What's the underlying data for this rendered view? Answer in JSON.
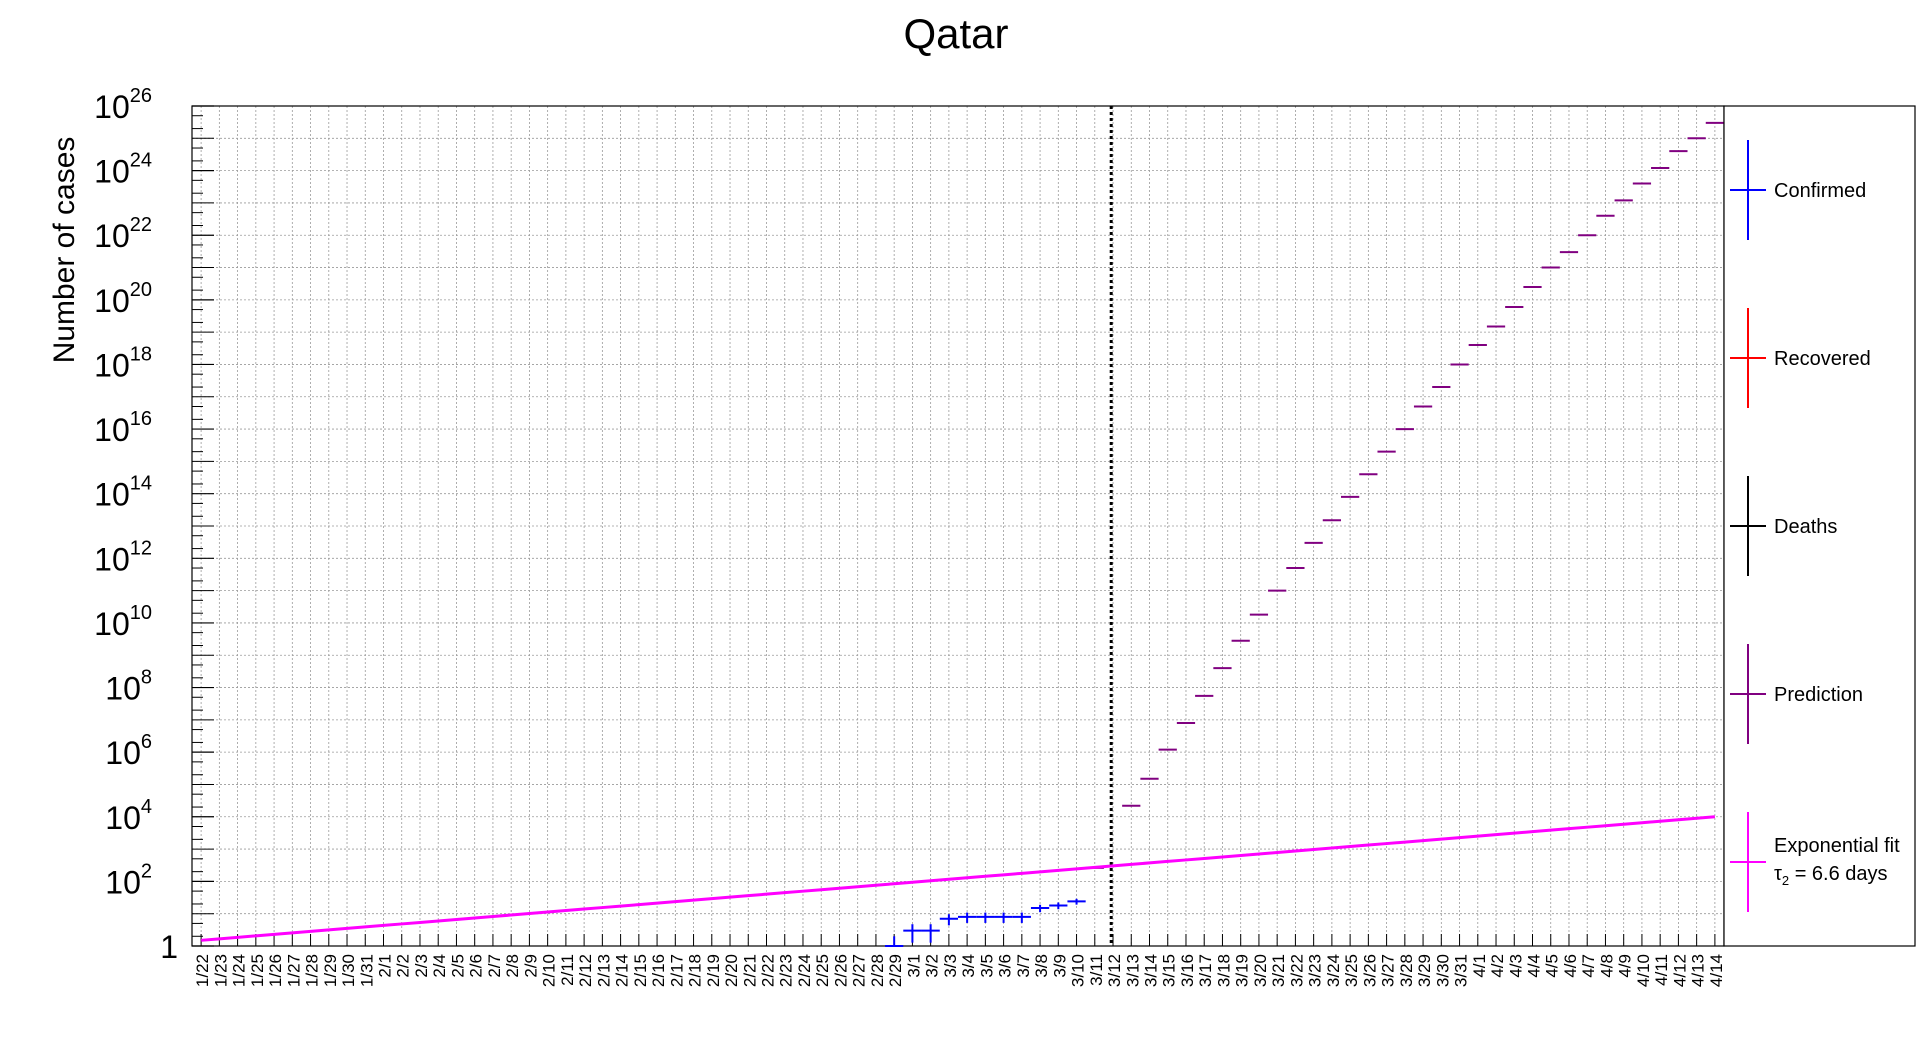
{
  "chart_data": {
    "type": "scatter",
    "title": "Qatar",
    "xlabel": "",
    "ylabel": "Number of cases",
    "y_scale": "log",
    "ylim": [
      1,
      1e+26
    ],
    "y_ticks": [
      {
        "base": "1",
        "exp": ""
      },
      {
        "base": "10",
        "exp": "2"
      },
      {
        "base": "10",
        "exp": "4"
      },
      {
        "base": "10",
        "exp": "6"
      },
      {
        "base": "10",
        "exp": "8"
      },
      {
        "base": "10",
        "exp": "10"
      },
      {
        "base": "10",
        "exp": "12"
      },
      {
        "base": "10",
        "exp": "14"
      },
      {
        "base": "10",
        "exp": "16"
      },
      {
        "base": "10",
        "exp": "18"
      },
      {
        "base": "10",
        "exp": "20"
      },
      {
        "base": "10",
        "exp": "22"
      },
      {
        "base": "10",
        "exp": "24"
      },
      {
        "base": "10",
        "exp": "26"
      }
    ],
    "grid": true,
    "legend_position": "right",
    "categories": [
      "1/22",
      "1/23",
      "1/24",
      "1/25",
      "1/26",
      "1/27",
      "1/28",
      "1/29",
      "1/30",
      "1/31",
      "2/1",
      "2/2",
      "2/3",
      "2/4",
      "2/5",
      "2/6",
      "2/7",
      "2/8",
      "2/9",
      "2/10",
      "2/11",
      "2/12",
      "2/13",
      "2/14",
      "2/15",
      "2/16",
      "2/17",
      "2/18",
      "2/19",
      "2/20",
      "2/21",
      "2/22",
      "2/23",
      "2/24",
      "2/25",
      "2/26",
      "2/27",
      "2/28",
      "2/29",
      "3/1",
      "3/2",
      "3/3",
      "3/4",
      "3/5",
      "3/6",
      "3/7",
      "3/8",
      "3/9",
      "3/10",
      "3/11",
      "3/12",
      "3/13",
      "3/14",
      "3/15",
      "3/16",
      "3/17",
      "3/18",
      "3/19",
      "3/20",
      "3/21",
      "3/22",
      "3/23",
      "3/24",
      "3/25",
      "3/26",
      "3/27",
      "3/28",
      "3/29",
      "3/30",
      "3/31",
      "4/1",
      "4/2",
      "4/3",
      "4/4",
      "4/5",
      "4/6",
      "4/7",
      "4/8",
      "4/9",
      "4/10",
      "4/11",
      "4/12",
      "4/13",
      "4/14"
    ],
    "vertical_marker": "3/12",
    "series": [
      {
        "name": "Confirmed",
        "color": "#0000ff",
        "points": [
          {
            "x": "2/29",
            "y": 1
          },
          {
            "x": "3/1",
            "y": 3
          },
          {
            "x": "3/2",
            "y": 3
          },
          {
            "x": "3/3",
            "y": 7
          },
          {
            "x": "3/4",
            "y": 8
          },
          {
            "x": "3/5",
            "y": 8
          },
          {
            "x": "3/6",
            "y": 8
          },
          {
            "x": "3/7",
            "y": 8
          },
          {
            "x": "3/8",
            "y": 15
          },
          {
            "x": "3/9",
            "y": 18
          },
          {
            "x": "3/10",
            "y": 24
          }
        ]
      },
      {
        "name": "Recovered",
        "color": "#ff0000",
        "points": []
      },
      {
        "name": "Deaths",
        "color": "#000000",
        "points": []
      },
      {
        "name": "Prediction",
        "color": "#800080",
        "points": [
          {
            "x": "3/11",
            "y": 262
          },
          {
            "x": "3/13",
            "y": 22000
          },
          {
            "x": "3/14",
            "y": 150000
          },
          {
            "x": "3/15",
            "y": 1200000
          },
          {
            "x": "3/16",
            "y": 8000000
          },
          {
            "x": "3/17",
            "y": 55000000
          },
          {
            "x": "3/18",
            "y": 400000000
          },
          {
            "x": "3/19",
            "y": 2800000000
          },
          {
            "x": "3/20",
            "y": 18000000000
          },
          {
            "x": "3/21",
            "y": 100000000000
          },
          {
            "x": "3/22",
            "y": 500000000000
          },
          {
            "x": "3/23",
            "y": 3000000000000
          },
          {
            "x": "3/24",
            "y": 15000000000000
          },
          {
            "x": "3/25",
            "y": 80000000000000
          },
          {
            "x": "3/26",
            "y": 400000000000000
          },
          {
            "x": "3/27",
            "y": 2000000000000000
          },
          {
            "x": "3/28",
            "y": 10000000000000000
          },
          {
            "x": "3/29",
            "y": 50000000000000000
          },
          {
            "x": "3/30",
            "y": 200000000000000000
          },
          {
            "x": "3/31",
            "y": 1000000000000000000
          },
          {
            "x": "4/1",
            "y": 4000000000000000000
          },
          {
            "x": "4/2",
            "y": 15000000000000000000
          },
          {
            "x": "4/3",
            "y": 60000000000000000000
          },
          {
            "x": "4/4",
            "y": 250000000000000000000
          },
          {
            "x": "4/5",
            "y": 1000000000000000000000
          },
          {
            "x": "4/6",
            "y": 3000000000000000000000
          },
          {
            "x": "4/7",
            "y": 10000000000000000000000
          },
          {
            "x": "4/8",
            "y": 40000000000000000000000
          },
          {
            "x": "4/9",
            "y": 120000000000000000000000
          },
          {
            "x": "4/10",
            "y": 400000000000000000000000
          },
          {
            "x": "4/11",
            "y": 1200000000000000000000000
          },
          {
            "x": "4/12",
            "y": 4000000000000000000000000
          },
          {
            "x": "4/13",
            "y": 10000000000000000000000000
          },
          {
            "x": "4/14",
            "y": 30000000000000000000000000
          }
        ]
      },
      {
        "name": "Exponential fit",
        "color": "#ff00ff",
        "fit": {
          "x_start": "1/22",
          "y_start": 1.5,
          "x_end": "4/14",
          "y_end": 10000
        }
      }
    ],
    "legend_fit_note": {
      "tau": "τ",
      "sub": "2",
      "text": " = 6.6 days"
    }
  }
}
